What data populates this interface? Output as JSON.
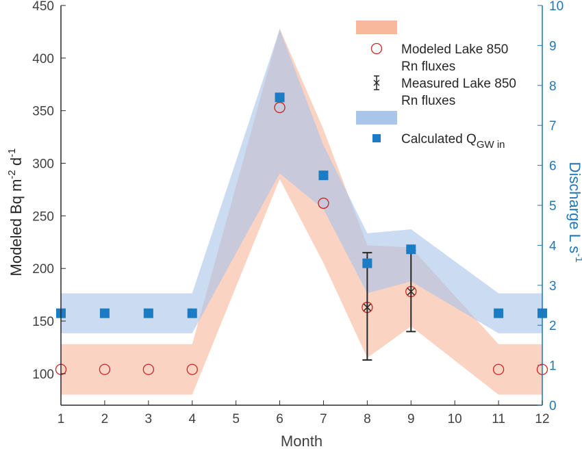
{
  "chart_data": {
    "type": "line",
    "xlabel": "Month",
    "ylabel_left": "Modeled Bq m-2 d-1",
    "ylabel_right": "Discharge L s-1",
    "xlim": [
      1,
      12
    ],
    "ylim_left": [
      70,
      450
    ],
    "ylim_right": [
      0,
      10
    ],
    "x_ticks": [
      1,
      2,
      3,
      4,
      5,
      6,
      7,
      8,
      9,
      10,
      11,
      12
    ],
    "y_left_ticks": [
      100,
      150,
      200,
      250,
      300,
      350,
      400,
      450
    ],
    "y_right_ticks": [
      0,
      1,
      2,
      3,
      4,
      5,
      6,
      7,
      8,
      9,
      10
    ],
    "colors": {
      "left_axis": "#262626",
      "right_axis": "#1f77b4",
      "flux_band": "#f7b89c",
      "discharge_band": "#a9c5ea",
      "modeled_marker": "#cc2222",
      "measured_marker": "#262626",
      "calculated_marker": "#1a7cc4"
    },
    "series": [
      {
        "name": "",
        "kind": "band",
        "axis": "left",
        "color": "#f7b89c",
        "x": [
          1,
          4,
          6,
          7,
          8,
          9,
          11,
          12
        ],
        "lower": [
          80,
          80,
          285,
          205,
          115,
          145,
          80,
          80
        ],
        "upper": [
          128,
          128,
          428,
          332,
          222,
          220,
          128,
          128
        ]
      },
      {
        "name": "Modeled Lake 850 Rn fluxes",
        "kind": "markers",
        "marker": "circle",
        "axis": "left",
        "color": "#cc2222",
        "x": [
          1,
          2,
          3,
          4,
          6,
          7,
          8,
          9,
          11,
          12
        ],
        "y": [
          104,
          104,
          104,
          104,
          353,
          262,
          163,
          178,
          104,
          104
        ]
      },
      {
        "name": "Measured Lake 850 Rn fluxes",
        "kind": "errorbar",
        "marker": "x",
        "axis": "left",
        "color": "#262626",
        "x": [
          8,
          9
        ],
        "y": [
          163,
          178
        ],
        "err_low": [
          113,
          140
        ],
        "err_high": [
          215,
          217
        ]
      },
      {
        "name": "",
        "kind": "band",
        "axis": "right",
        "color": "#a9c5ea",
        "x": [
          1,
          4,
          6,
          7,
          8,
          9,
          11,
          12
        ],
        "lower": [
          1.8,
          1.8,
          5.8,
          4.9,
          2.8,
          3.1,
          1.8,
          1.8
        ],
        "upper": [
          2.8,
          2.8,
          9.4,
          6.5,
          4.3,
          4.4,
          2.8,
          2.8
        ]
      },
      {
        "name": "Calculated QGW in",
        "kind": "markers",
        "marker": "square",
        "axis": "right",
        "color": "#1a7cc4",
        "x": [
          1,
          2,
          3,
          4,
          6,
          7,
          8,
          9,
          11,
          12
        ],
        "y": [
          2.3,
          2.3,
          2.3,
          2.3,
          7.7,
          5.75,
          3.55,
          3.9,
          2.3,
          2.3
        ]
      }
    ],
    "legend": {
      "placement": "top-right",
      "entries": [
        {
          "symbol": "flux-band",
          "lines": []
        },
        {
          "symbol": "circle",
          "lines": [
            "Modeled Lake 850",
            "Rn fluxes"
          ]
        },
        {
          "symbol": "errorbar",
          "lines": [
            "Measured Lake 850",
            "Rn fluxes"
          ]
        },
        {
          "symbol": "discharge-band",
          "lines": []
        },
        {
          "symbol": "square",
          "lines": [
            "Calculated Q"
          ],
          "subscript": "GW in"
        }
      ]
    }
  }
}
